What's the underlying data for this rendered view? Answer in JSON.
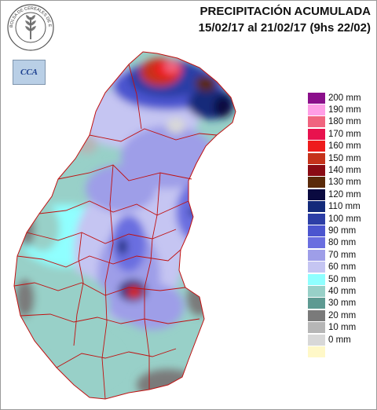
{
  "title": {
    "line1": "PRECIPITACIÓN ACUMULADA",
    "line2": "15/02/17 al 21/02/17 (9hs 22/02)"
  },
  "logos": {
    "bolsa_text": "BOLSA DE CEREALES DE ENTRE RIOS",
    "cca_text": "CCA"
  },
  "legend": [
    {
      "label": "200 mm",
      "color": "#8b0f8b"
    },
    {
      "label": "190 mm",
      "color": "#ff9ee6"
    },
    {
      "label": "180 mm",
      "color": "#f0647f"
    },
    {
      "label": "170 mm",
      "color": "#e8124e"
    },
    {
      "label": "160 mm",
      "color": "#ee1c1c"
    },
    {
      "label": "150 mm",
      "color": "#c5321b"
    },
    {
      "label": "140 mm",
      "color": "#8a0b14"
    },
    {
      "label": "130 mm",
      "color": "#5a2a0a"
    },
    {
      "label": "120 mm",
      "color": "#0a0a40"
    },
    {
      "label": "110 mm",
      "color": "#132a7a"
    },
    {
      "label": "100 mm",
      "color": "#2c3ea6"
    },
    {
      "label": "90 mm",
      "color": "#4b55cf"
    },
    {
      "label": "80 mm",
      "color": "#6a6ee0"
    },
    {
      "label": "70 mm",
      "color": "#9e9ee8"
    },
    {
      "label": "60 mm",
      "color": "#c5c5f2"
    },
    {
      "label": "50 mm",
      "color": "#8fffff"
    },
    {
      "label": "40 mm",
      "color": "#98d0c8"
    },
    {
      "label": "30 mm",
      "color": "#5e9a92"
    },
    {
      "label": "20 mm",
      "color": "#7a7a7a"
    },
    {
      "label": "10 mm",
      "color": "#b6b6b6"
    },
    {
      "label": "0 mm",
      "color": "#d8d8d8"
    },
    {
      "label": "",
      "color": "#fff8c8"
    }
  ]
}
